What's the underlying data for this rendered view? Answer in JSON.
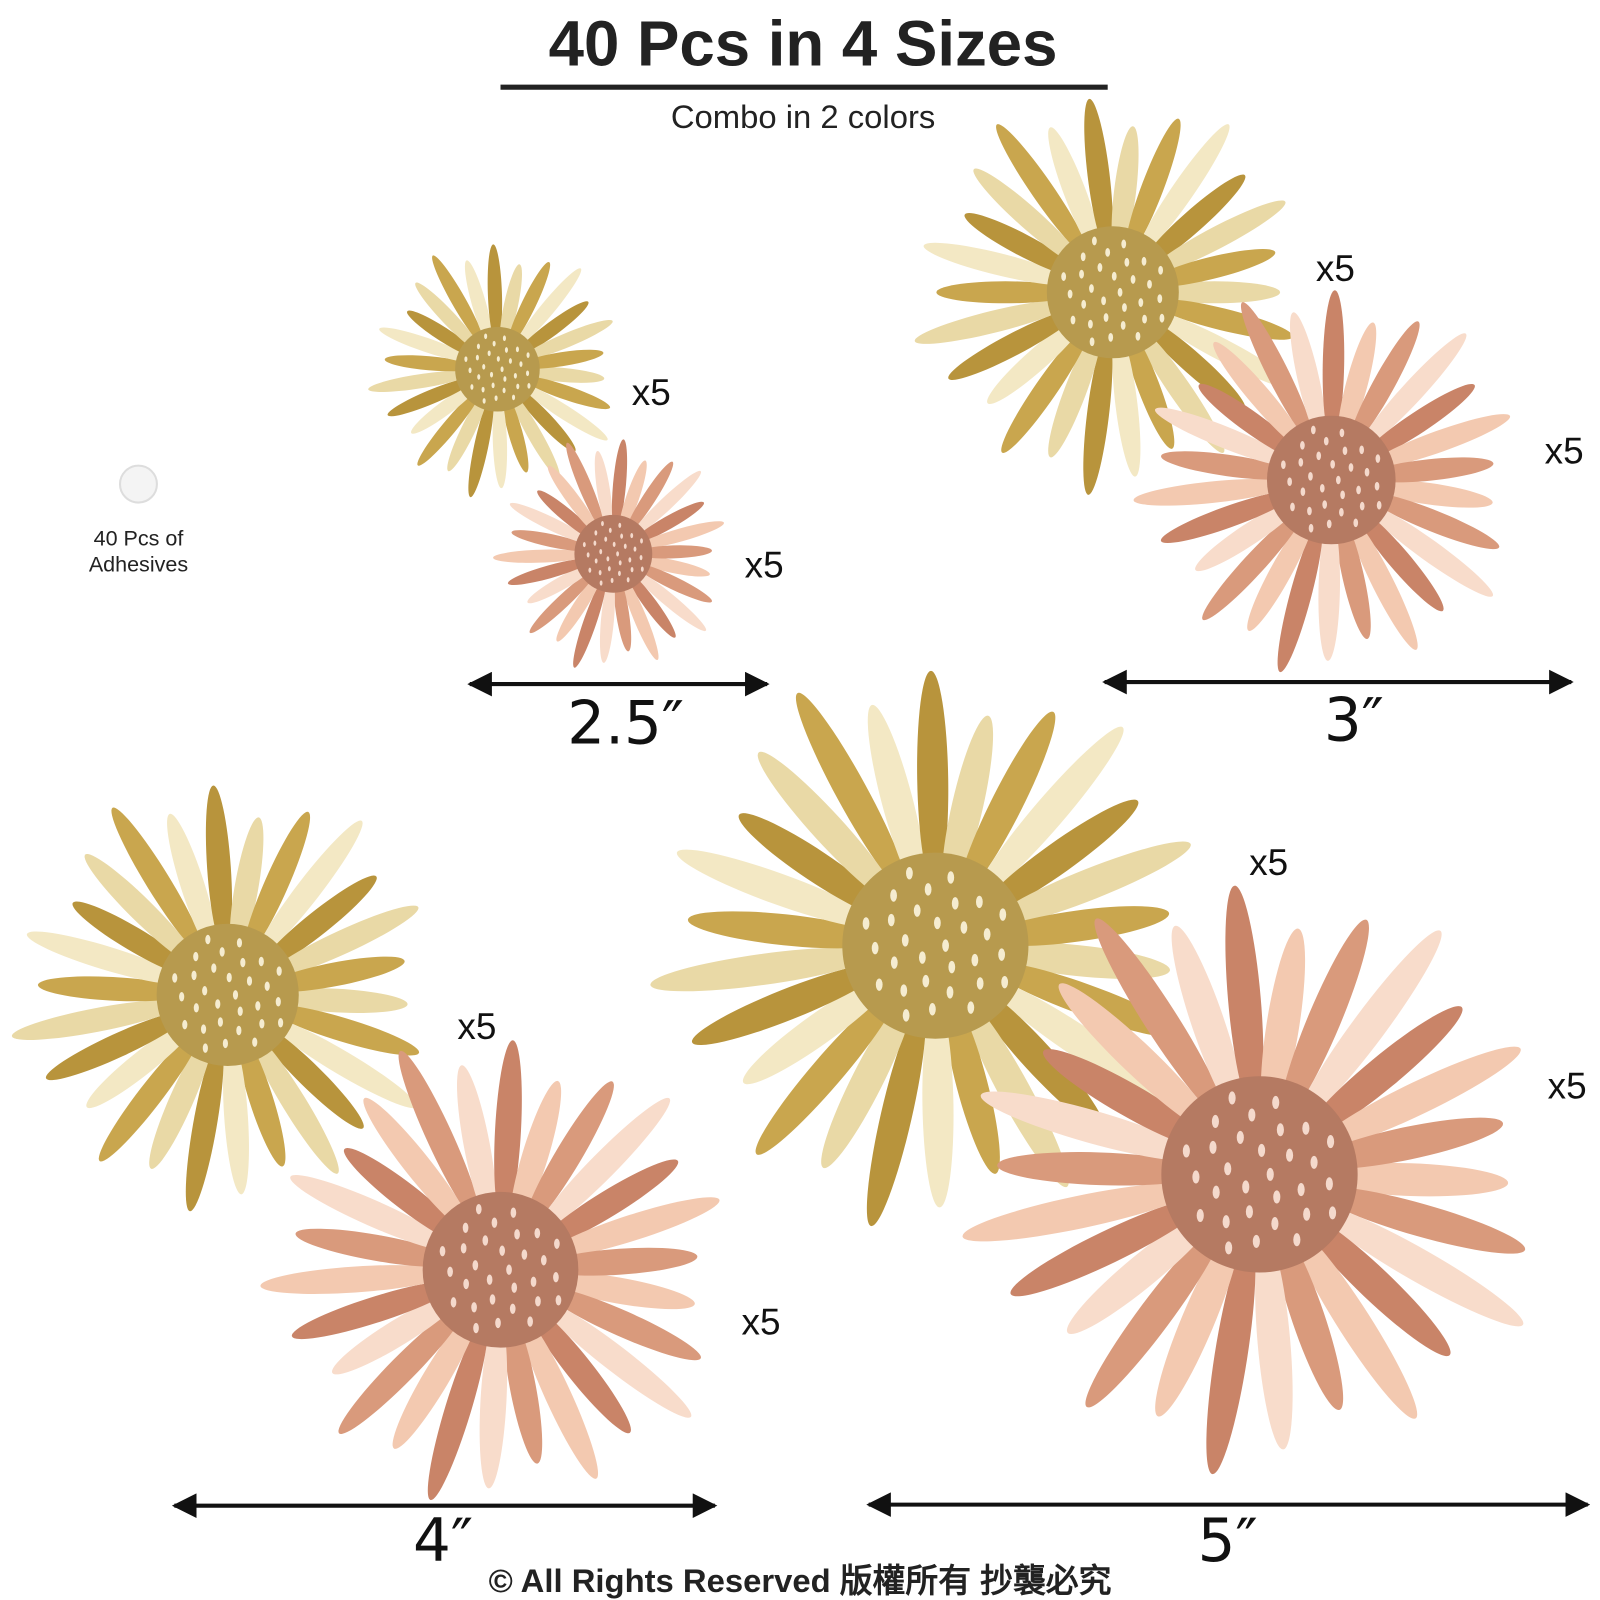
{
  "header": {
    "title": "40 Pcs in 4 Sizes",
    "subtitle": "Combo in 2 colors"
  },
  "adhesive": {
    "lines": [
      "40 Pcs of",
      "Adhesives"
    ]
  },
  "groups": [
    {
      "size": "2.5″",
      "quantities": [
        "x5",
        "x5"
      ]
    },
    {
      "size": "3″",
      "quantities": [
        "x5",
        "x5"
      ]
    },
    {
      "size": "4″",
      "quantities": [
        "x5",
        "x5"
      ]
    },
    {
      "size": "5″",
      "quantities": [
        "x5",
        "x5"
      ]
    }
  ],
  "footer": "© All Rights Reserved 版權所有 抄襲必究"
}
